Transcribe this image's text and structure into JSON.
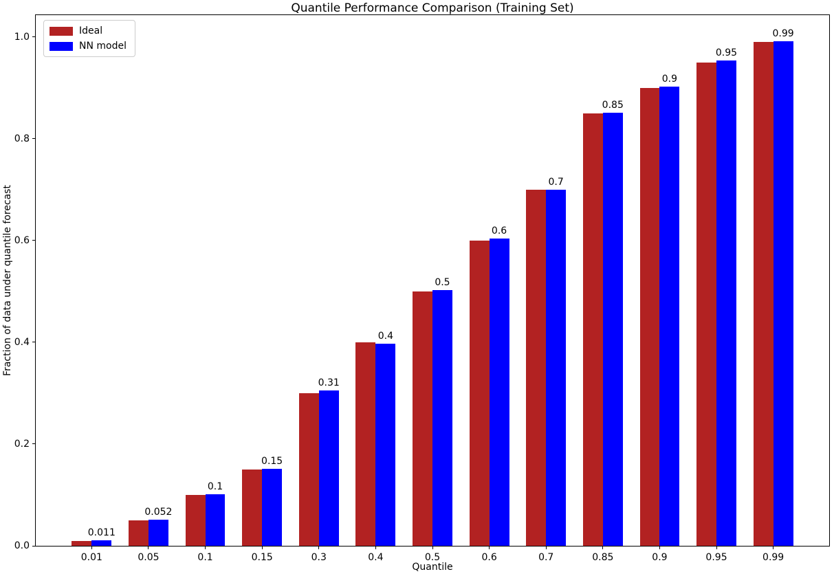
{
  "chart_data": {
    "type": "bar",
    "title": "Quantile Performance Comparison (Training Set)",
    "xlabel": "Quantile",
    "ylabel": "Fraction of data under quantile forecast",
    "categories": [
      "0.01",
      "0.05",
      "0.1",
      "0.15",
      "0.3",
      "0.4",
      "0.5",
      "0.6",
      "0.7",
      "0.85",
      "0.9",
      "0.95",
      "0.99"
    ],
    "series": [
      {
        "name": "Ideal",
        "color": "#b22222",
        "values": [
          0.01,
          0.05,
          0.1,
          0.15,
          0.3,
          0.4,
          0.5,
          0.6,
          0.7,
          0.85,
          0.9,
          0.95,
          0.99
        ]
      },
      {
        "name": "NN model",
        "color": "#0000ff",
        "values": [
          0.011,
          0.052,
          0.101,
          0.152,
          0.306,
          0.397,
          0.503,
          0.604,
          0.7,
          0.851,
          0.903,
          0.954,
          0.992
        ],
        "bar_labels": [
          "0.011",
          "0.052",
          "0.1",
          "0.15",
          "0.31",
          "0.4",
          "0.5",
          "0.6",
          "0.7",
          "0.85",
          "0.9",
          "0.95",
          "0.99"
        ]
      }
    ],
    "yticks": [
      "0.0",
      "0.2",
      "0.4",
      "0.6",
      "0.8",
      "1.0"
    ],
    "ylim": [
      0,
      1.043
    ],
    "grid": false,
    "legend": {
      "position": "upper left",
      "entries": [
        "Ideal",
        "NN model"
      ]
    },
    "bar_width_fraction": 0.35,
    "value_labels_on_series": "NN model"
  }
}
